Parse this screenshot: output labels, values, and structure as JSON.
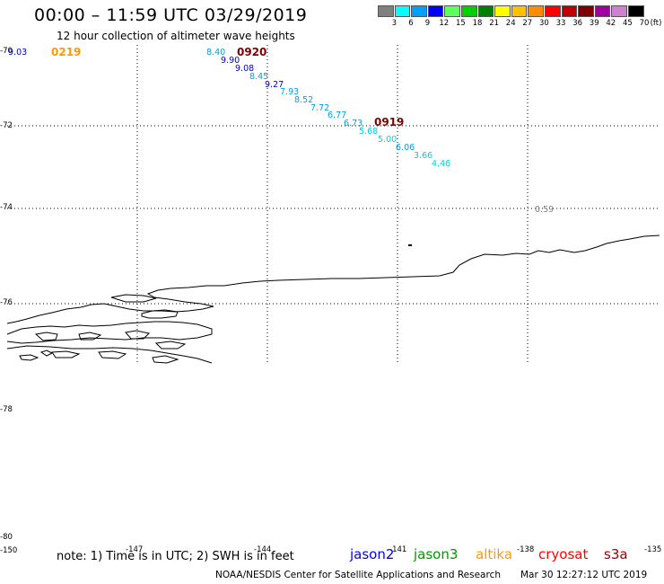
{
  "header": {
    "title": "00:00 – 11:59 UTC 03/29/2019",
    "subtitle": "12 hour collection of altimeter wave heights"
  },
  "colorbar": {
    "unit": "(ft)",
    "ticks": [
      "3",
      "6",
      "9",
      "12",
      "15",
      "18",
      "21",
      "24",
      "27",
      "30",
      "33",
      "36",
      "39",
      "42",
      "45",
      "70"
    ],
    "colors": [
      "#808080",
      "#00ffff",
      "#00a0ff",
      "#0000ff",
      "#60ff60",
      "#00d000",
      "#008000",
      "#ffff00",
      "#ffc000",
      "#ff8c00",
      "#ff0000",
      "#c00000",
      "#800000",
      "#a000a0",
      "#d080d0",
      "#000000"
    ]
  },
  "axes": {
    "lat_labels": [
      "-70",
      "-72",
      "-74",
      "-76",
      "-78",
      "-80"
    ],
    "lon_labels": [
      "-150",
      "-147",
      "-144",
      "-141",
      "-138",
      "-135"
    ]
  },
  "swh_readings": [
    {
      "value": "9.03",
      "color": "#0000c0"
    },
    {
      "value": "8.40",
      "color": "#00a0e0"
    },
    {
      "value": "9.90",
      "color": "#0000c0"
    },
    {
      "value": "9.08",
      "color": "#0000c0"
    },
    {
      "value": "8.45",
      "color": "#00a0e0"
    },
    {
      "value": "9.27",
      "color": "#0000c0"
    },
    {
      "value": "7.93",
      "color": "#00a0e0"
    },
    {
      "value": "8.52",
      "color": "#00a0e0"
    },
    {
      "value": "7.72",
      "color": "#00a0e0"
    },
    {
      "value": "6.77",
      "color": "#00a0e0"
    },
    {
      "value": "6.73",
      "color": "#00a0e0"
    },
    {
      "value": "5.68",
      "color": "#00d0e0"
    },
    {
      "value": "5.00",
      "color": "#00d0e0"
    },
    {
      "value": "6.06",
      "color": "#00a0e0"
    },
    {
      "value": "3.66",
      "color": "#00d0e0"
    },
    {
      "value": "4.46",
      "color": "#00d0e0"
    },
    {
      "value": "0.59",
      "color": "#808080"
    }
  ],
  "orbit_labels": [
    {
      "text": "0219",
      "color": "#ff9900"
    },
    {
      "text": "0920",
      "color": "#800000"
    },
    {
      "text": "0919",
      "color": "#800000"
    }
  ],
  "footer": {
    "note": "note: 1) Time is in UTC; 2) SWH is in feet",
    "satellites": [
      {
        "name": "jason2",
        "color": "#0000ff"
      },
      {
        "name": "jason3",
        "color": "#009900"
      },
      {
        "name": "altika",
        "color": "#ff9900"
      },
      {
        "name": "cryosat",
        "color": "#ff0000"
      },
      {
        "name": "s3a",
        "color": "#990000"
      }
    ],
    "credit": "NOAA/NESDIS Center for Satellite Applications and Research",
    "timestamp": "Mar 30 12:27:12 UTC 2019"
  }
}
